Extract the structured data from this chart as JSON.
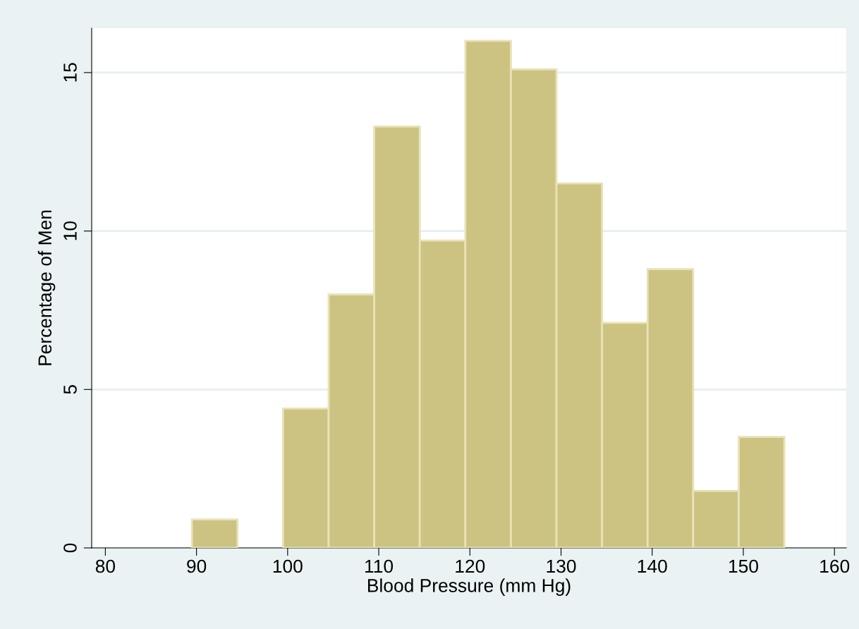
{
  "chart_data": {
    "type": "histogram",
    "xlabel": "Blood Pressure (mm Hg)",
    "ylabel": "Percentage of Men",
    "bins": [
      89.5,
      94.5,
      99.5,
      104.5,
      109.5,
      114.5,
      119.5,
      124.5,
      129.5,
      134.5,
      139.5,
      144.5,
      149.5,
      154.5
    ],
    "values": [
      0.9,
      0,
      4.4,
      8.0,
      13.3,
      9.7,
      16.0,
      15.1,
      11.5,
      7.1,
      8.8,
      1.8,
      3.5
    ],
    "color": "#ccc382",
    "xlim": [
      78.5,
      161.3
    ],
    "xticks": [
      80,
      90,
      100,
      110,
      120,
      130,
      140,
      150,
      160
    ],
    "ylim": [
      0,
      16.4
    ],
    "yticks": [
      0,
      5,
      10,
      15
    ],
    "grid": "y"
  }
}
